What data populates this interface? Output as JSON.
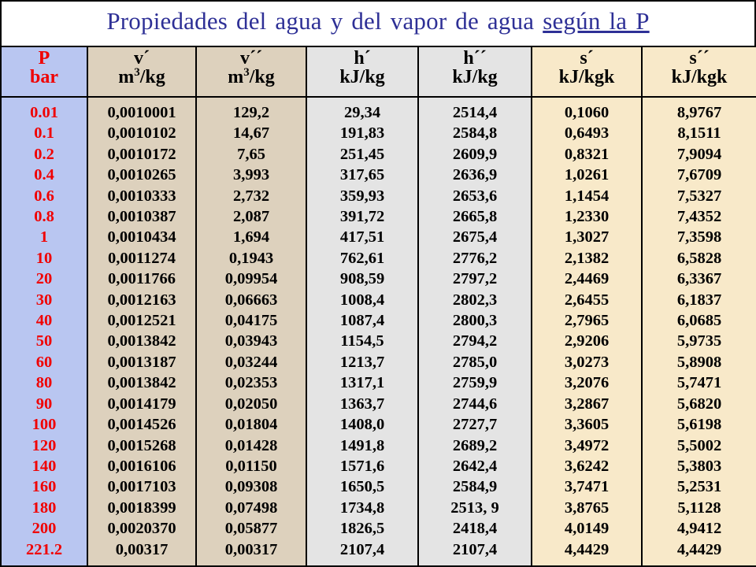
{
  "title": {
    "main": "Propiedades del agua y del vapor de agua",
    "underlined": "según la P"
  },
  "headers": [
    {
      "top": "P",
      "unit_base": "bar",
      "unit_sup": ""
    },
    {
      "top": "v´",
      "unit_base": "m",
      "unit_sup": "3",
      "unit_tail": "/kg"
    },
    {
      "top": "v´´",
      "unit_base": "m",
      "unit_sup": "3",
      "unit_tail": "/kg"
    },
    {
      "top": "h´",
      "unit_base": "kJ/kg",
      "unit_sup": ""
    },
    {
      "top": "h´´",
      "unit_base": "kJ/kg",
      "unit_sup": ""
    },
    {
      "top": "s´",
      "unit_base": "kJ/kgk",
      "unit_sup": ""
    },
    {
      "top": "s´´",
      "unit_base": "kJ/kgk",
      "unit_sup": ""
    }
  ],
  "columns": {
    "P": [
      "0.01",
      "0.1",
      "0.2",
      "0.4",
      "0.6",
      "0.8",
      "1",
      "10",
      "20",
      "30",
      "40",
      "50",
      "60",
      "80",
      "90",
      "100",
      "120",
      "140",
      "160",
      "180",
      "200",
      "221.2"
    ],
    "v1": [
      "0,0010001",
      "0,0010102",
      "0,0010172",
      "0,0010265",
      "0,0010333",
      "0,0010387",
      "0,0010434",
      "0,0011274",
      "0,0011766",
      "0,0012163",
      "0,0012521",
      "0,0013842",
      "0,0013187",
      "0,0013842",
      "0,0014179",
      "0,0014526",
      "0,0015268",
      "0,0016106",
      "0,0017103",
      "0,0018399",
      "0,0020370",
      "0,00317"
    ],
    "v2": [
      "129,2",
      "14,67",
      "7,65",
      "3,993",
      "2,732",
      "2,087",
      "1,694",
      "0,1943",
      "0,09954",
      "0,06663",
      "0,04175",
      "0,03943",
      "0,03244",
      "0,02353",
      "0,02050",
      "0,01804",
      "0,01428",
      "0,01150",
      "0,09308",
      "0,07498",
      "0,05877",
      "0,00317"
    ],
    "h1": [
      "29,34",
      "191,83",
      "251,45",
      "317,65",
      "359,93",
      "391,72",
      "417,51",
      "762,61",
      "908,59",
      "1008,4",
      "1087,4",
      "1154,5",
      "1213,7",
      "1317,1",
      "1363,7",
      "1408,0",
      "1491,8",
      "1571,6",
      "1650,5",
      "1734,8",
      "1826,5",
      "2107,4"
    ],
    "h2": [
      "2514,4",
      "2584,8",
      "2609,9",
      "2636,9",
      "2653,6",
      "2665,8",
      "2675,4",
      "2776,2",
      "2797,2",
      "2802,3",
      "2800,3",
      "2794,2",
      "2785,0",
      "2759,9",
      "2744,6",
      "2727,7",
      "2689,2",
      "2642,4",
      "2584,9",
      "2513, 9",
      "2418,4",
      "2107,4"
    ],
    "s1": [
      "0,1060",
      "0,6493",
      "0,8321",
      "1,0261",
      "1,1454",
      "1,2330",
      "1,3027",
      "2,1382",
      "2,4469",
      "2,6455",
      "2,7965",
      "2,9206",
      "3,0273",
      "3,2076",
      "3,2867",
      "3,3605",
      "3,4972",
      "3,6242",
      "3,7471",
      "3,8765",
      "4,0149",
      "4,4429"
    ],
    "s2": [
      "8,9767",
      "8,1511",
      "7,9094",
      "7,6709",
      "7,5327",
      "7,4352",
      "7,3598",
      "6,5828",
      "6,3367",
      "6,1837",
      "6,0685",
      "5,9735",
      "5,8908",
      "5,7471",
      "5,6820",
      "5,6198",
      "5,5002",
      "5,3803",
      "5,2531",
      "5,1128",
      "4,9412",
      "4,4429"
    ]
  },
  "colors": {
    "title": "#2e3096",
    "pressure": "#f00000",
    "col_blue": "#b9c6f1",
    "col_tan": "#ddd1bd",
    "col_grey": "#e4e4e4",
    "col_cream": "#f8e9c9"
  }
}
